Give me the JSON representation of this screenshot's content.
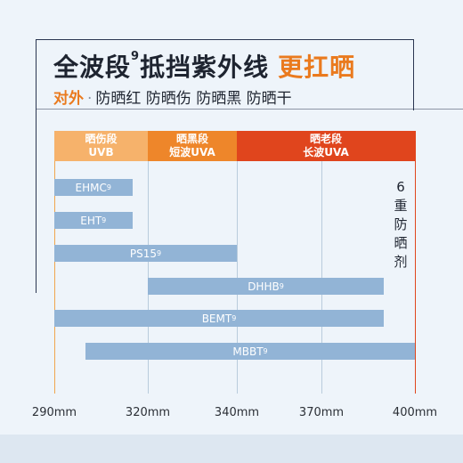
{
  "header": {
    "title_main": "全波段",
    "title_sup": "9",
    "title_rest": "抵挡紫外线",
    "title_accent": "更扛晒"
  },
  "subtitle": {
    "tag": "对外",
    "dot": "·",
    "items": "防晒红 防晒伤 防晒黑 防晒干"
  },
  "chart_data": {
    "type": "bar",
    "bands": [
      {
        "line1": "晒伤段",
        "line2": "UVB",
        "from": 290,
        "to": 320,
        "color": "#f6b26b"
      },
      {
        "line1": "晒黑段",
        "line2": "短波UVA",
        "from": 320,
        "to": 340,
        "color": "#ee862a"
      },
      {
        "line1": "晒老段",
        "line2": "长波UVA",
        "from": 340,
        "to": 400,
        "color": "#e0451d"
      }
    ],
    "series": [
      {
        "name": "EHMC",
        "sup": "9",
        "from": 290,
        "to": 315
      },
      {
        "name": "EHT",
        "sup": "9",
        "from": 290,
        "to": 315
      },
      {
        "name": "PS15",
        "sup": "9",
        "from": 290,
        "to": 340
      },
      {
        "name": "DHHB",
        "sup": "9",
        "from": 320,
        "to": 390
      },
      {
        "name": "BEMT",
        "sup": "9",
        "from": 290,
        "to": 390
      },
      {
        "name": "MBBT",
        "sup": "9",
        "from": 300,
        "to": 400
      }
    ],
    "ticks": [
      {
        "value": 290,
        "label": "290mm"
      },
      {
        "value": 320,
        "label": "320mm"
      },
      {
        "value": 340,
        "label": "340mm"
      },
      {
        "value": 370,
        "label": "370mm"
      },
      {
        "value": 400,
        "label": "400mm"
      }
    ],
    "tick_line_colors": [
      "#f0a64e",
      "#b9ccdc",
      "#b9ccdc",
      "#b9ccdc",
      "#e0451d"
    ],
    "side_label": [
      "6",
      "重",
      "防",
      "晒",
      "剂"
    ]
  }
}
